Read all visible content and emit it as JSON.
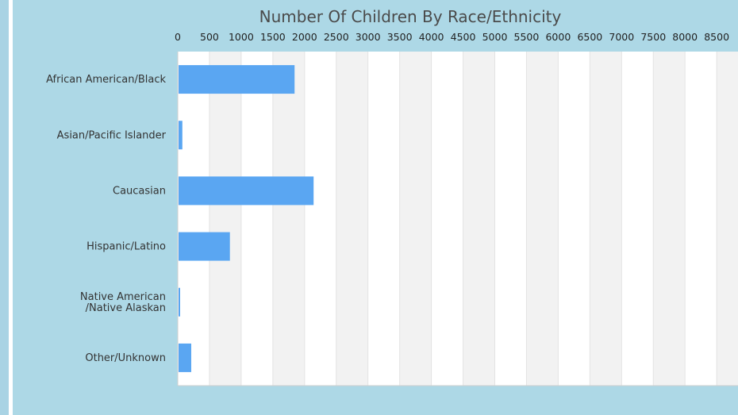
{
  "chart_data": {
    "type": "bar",
    "orientation": "horizontal",
    "title": "Number Of Children By Race/Ethnicity",
    "categories": [
      "African American/Black",
      "Asian/Pacific Islander",
      "Caucasian",
      "Hispanic/Latino",
      "Native American\n/Native Alaskan",
      "Other/Unknown"
    ],
    "values": [
      1830,
      60,
      2130,
      810,
      20,
      200
    ],
    "xlim": [
      0,
      8800
    ],
    "xticks": [
      0,
      500,
      1000,
      1500,
      2000,
      2500,
      3000,
      3500,
      4000,
      4500,
      5000,
      5500,
      6000,
      6500,
      7000,
      7500,
      8000,
      8500
    ],
    "x_axis_position": "top",
    "grid": "alternating vertical bands",
    "colors": {
      "bar": "#5aa6f2",
      "panel": "#add8e6",
      "band": "#f2f2f2",
      "plot": "#ffffff"
    }
  }
}
